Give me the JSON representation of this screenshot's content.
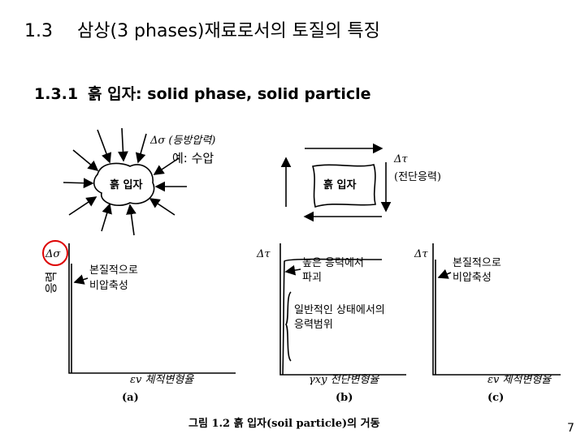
{
  "title": {
    "number": "1.3",
    "text": "삼상(3 phases)재료로서의 토질의 특징"
  },
  "subtitle": {
    "number": "1.3.1",
    "text": "흙 입자: solid phase, solid particle"
  },
  "figure": {
    "isotropic": {
      "stress_label": "Δσ (등방압력)",
      "particle": "흙 입자"
    },
    "shear": {
      "stress_label": "Δτ",
      "stress_name": "(전단응력)",
      "particle": "흙 입자"
    },
    "graphs": [
      {
        "y_label": "Δσ",
        "notes": [
          "본질적으로",
          "비압축성"
        ],
        "x_label": "εv 체적변형율",
        "tag": "(a)"
      },
      {
        "y_label": "Δτ",
        "notes": [
          "높은 응력에서",
          "파괴",
          "일반적인 상태에서의",
          "응력범위"
        ],
        "x_label": "γxy 전단변형율",
        "tag": "(b)"
      },
      {
        "y_label": "Δτ",
        "notes": [
          "본질적으로",
          "비압축성"
        ],
        "x_label": "εv 체적변형율",
        "tag": "(c)"
      }
    ],
    "caption": "그림 1.2 흙 입자(soil particle)의 거동"
  },
  "annotations": {
    "example": "예: 수압",
    "stress": "응력"
  },
  "page_number": "7"
}
